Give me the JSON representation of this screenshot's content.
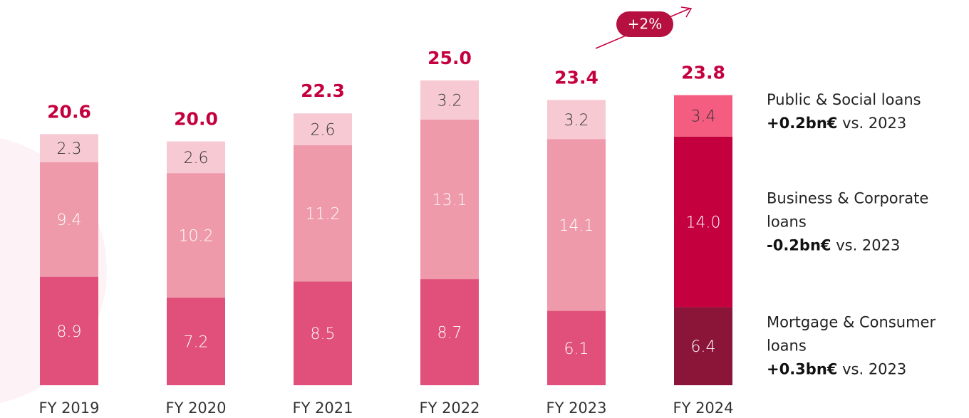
{
  "chart_data": {
    "type": "stacked-bar",
    "categories": [
      "FY 2019",
      "FY 2020",
      "FY 2021",
      "FY 2022",
      "FY 2023",
      "FY 2024"
    ],
    "series": [
      {
        "name": "Mortgage & Consumer loans",
        "colors": [
          "#e0507b",
          "#e0507b",
          "#e0507b",
          "#e0507b",
          "#e0507b",
          "#8b1538"
        ],
        "label_color": "#ffffff",
        "values": [
          8.9,
          7.2,
          8.5,
          8.7,
          6.1,
          6.4
        ],
        "change": "+0.3bn€",
        "note": "vs. 2023"
      },
      {
        "name": "Business & Corporate loans",
        "colors": [
          "#ee9aaa",
          "#ee9aaa",
          "#ee9aaa",
          "#ee9aaa",
          "#ee9aaa",
          "#c4003f"
        ],
        "label_color": "#ffffff",
        "values": [
          9.4,
          10.2,
          11.2,
          13.1,
          14.1,
          14.0
        ],
        "value_labels": [
          "9.4",
          "10.2",
          "11.2",
          "13.1",
          "14.1",
          "14.0"
        ],
        "change": "-0.2bn€",
        "note": "vs. 2023"
      },
      {
        "name": "Public & Social loans",
        "colors": [
          "#f7c9d3",
          "#f7c9d3",
          "#f7c9d3",
          "#f7c9d3",
          "#f7c9d3",
          "#f45d80"
        ],
        "label_color": "#333333",
        "values": [
          2.3,
          2.6,
          2.6,
          3.2,
          3.2,
          3.4
        ],
        "change": "+0.2bn€",
        "note": "vs. 2023"
      }
    ],
    "totals": {
      "values": [
        20.6,
        20.0,
        22.3,
        25.0,
        23.4,
        23.8
      ],
      "value_labels": [
        "20.6",
        "20.0",
        "22.3",
        "25.0",
        "23.4",
        "23.8"
      ],
      "color": "#c4003f"
    },
    "annotation": "+2%"
  }
}
